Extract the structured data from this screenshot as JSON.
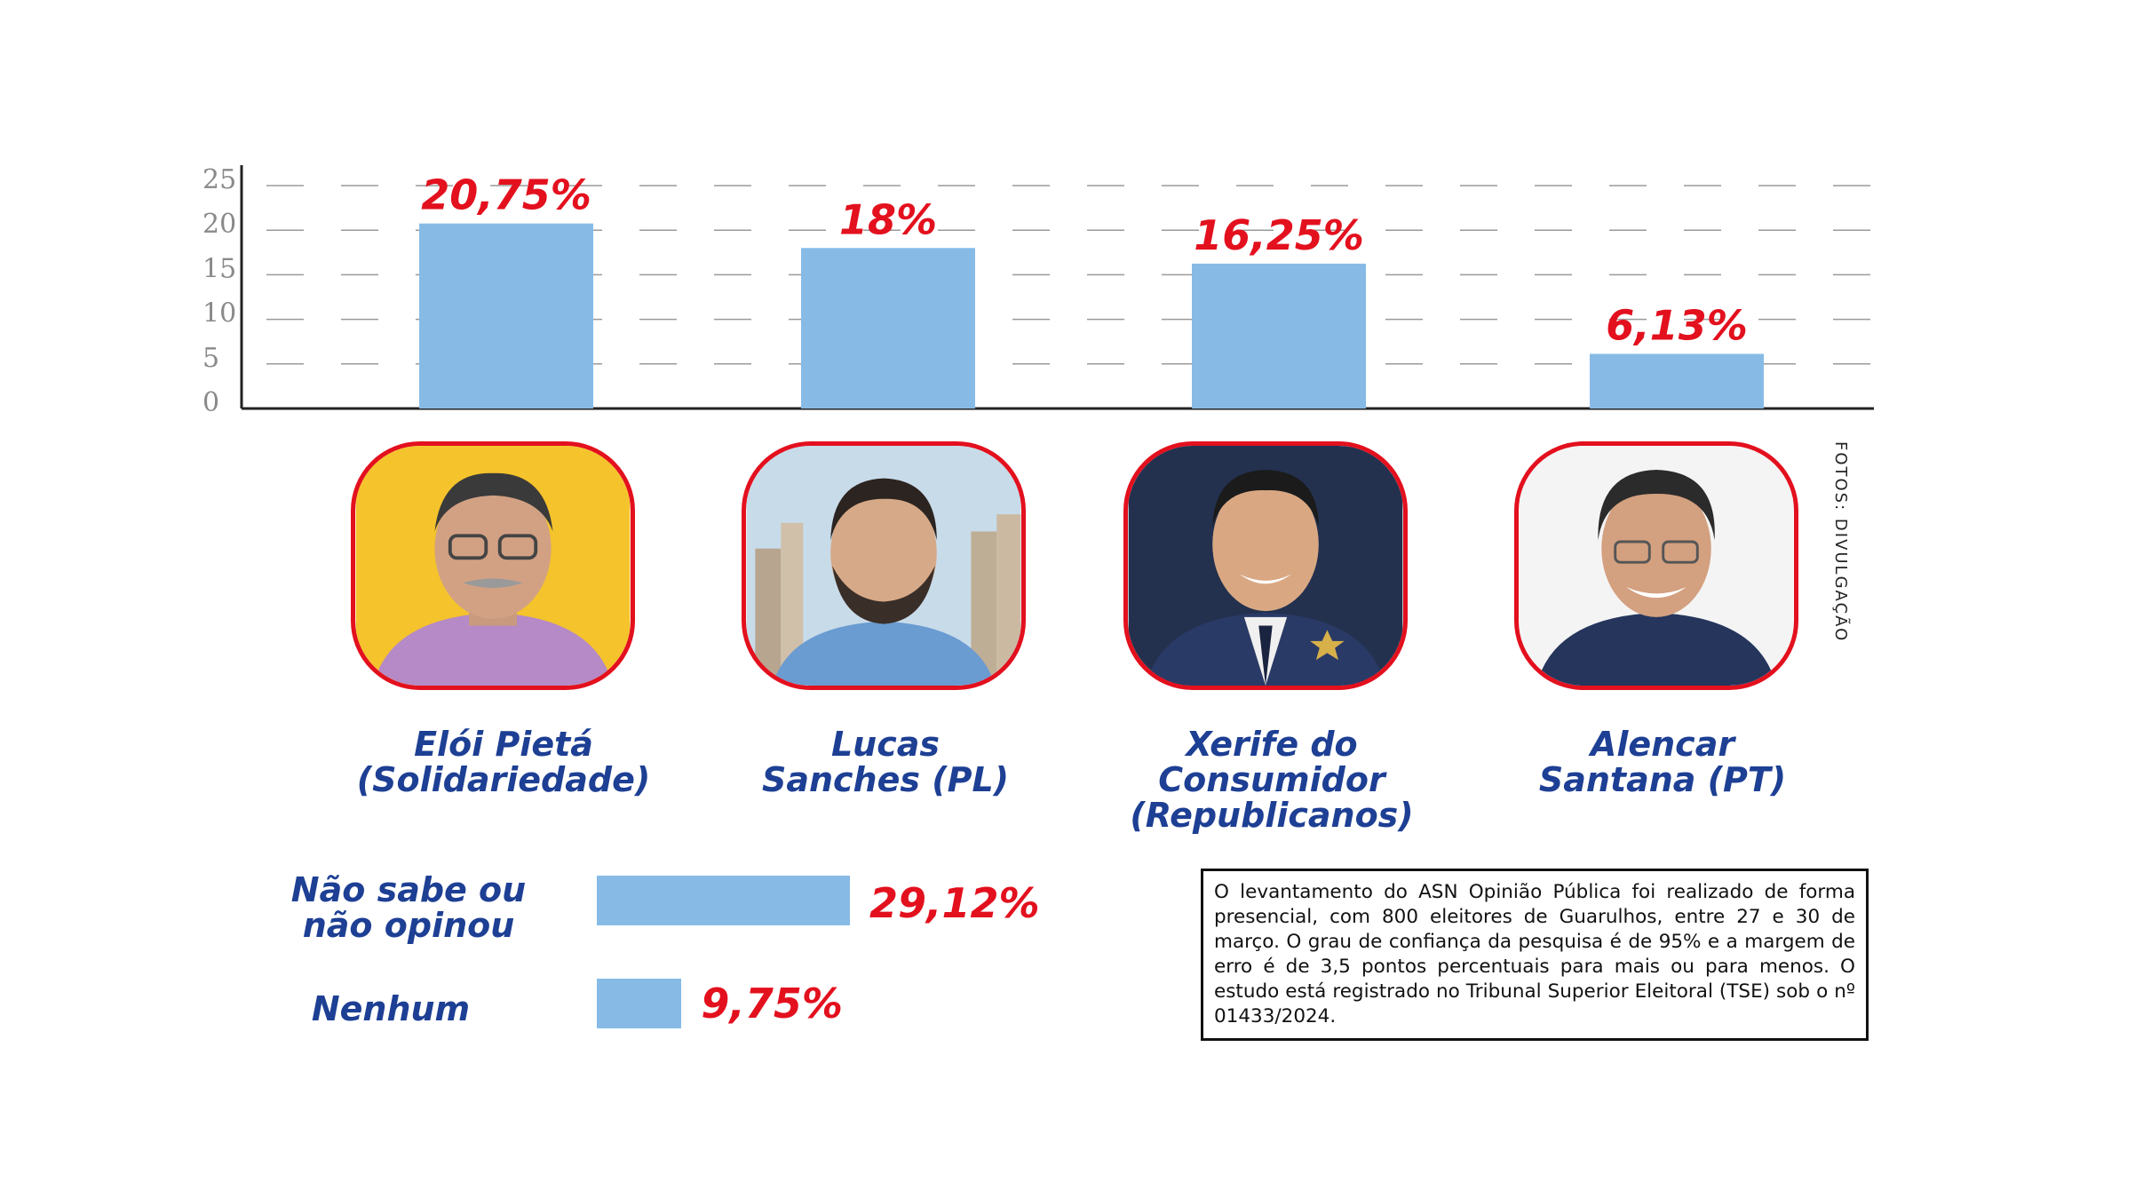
{
  "chart_data": {
    "type": "bar",
    "categories": [
      "Elói Pietá (Solidariedade)",
      "Lucas Sanches (PL)",
      "Xerife do Consumidor (Republicanos)",
      "Alencar Santana (PT)"
    ],
    "values": [
      20.75,
      18,
      16.25,
      6.13
    ],
    "value_labels": [
      "20,75%",
      "18%",
      "16,25%",
      "6,13%"
    ],
    "yticks": [
      0,
      5,
      10,
      15,
      20,
      25
    ],
    "ylim": [
      0,
      25
    ],
    "grid": "dashed horizontal",
    "bar_color": "#87bbe6",
    "label_color": "#e3101e"
  },
  "candidates": [
    {
      "name_line1": "Elói Pietá",
      "name_line2": "(Solidariedade)",
      "name_line3": ""
    },
    {
      "name_line1": "Lucas",
      "name_line2": "Sanches (PL)",
      "name_line3": ""
    },
    {
      "name_line1": "Xerife do",
      "name_line2": "Consumidor",
      "name_line3": "(Republicanos)"
    },
    {
      "name_line1": "Alencar",
      "name_line2": "Santana (PT)",
      "name_line3": ""
    }
  ],
  "extras": [
    {
      "label_line1": "Não sabe ou",
      "label_line2": "não opinou",
      "value": 29.12,
      "value_label": "29,12%"
    },
    {
      "label_line1": "Nenhum",
      "label_line2": "",
      "value": 9.75,
      "value_label": "9,75%"
    }
  ],
  "photo_credit": "FOTOS: DIVULGAÇÃO",
  "methodology_note": "O levantamento do ASN Opinião Pública foi realizado de forma presencial, com 800 eleitores de Guarulhos, entre 27 e 30 de março. O grau de confiança da pesquisa é de 95% e a margem de erro é de 3,5 pontos percentuais para mais ou para menos. O estudo está registrado no Tribunal Superior Eleitoral (TSE) sob o nº 01433/2024.",
  "colors": {
    "accent_red": "#e3101e",
    "name_blue": "#1d3f94",
    "bar_blue": "#87bbe6"
  },
  "icons": [
    "candidate-photo-eloi",
    "candidate-photo-lucas",
    "candidate-photo-xerife",
    "candidate-photo-alencar"
  ]
}
